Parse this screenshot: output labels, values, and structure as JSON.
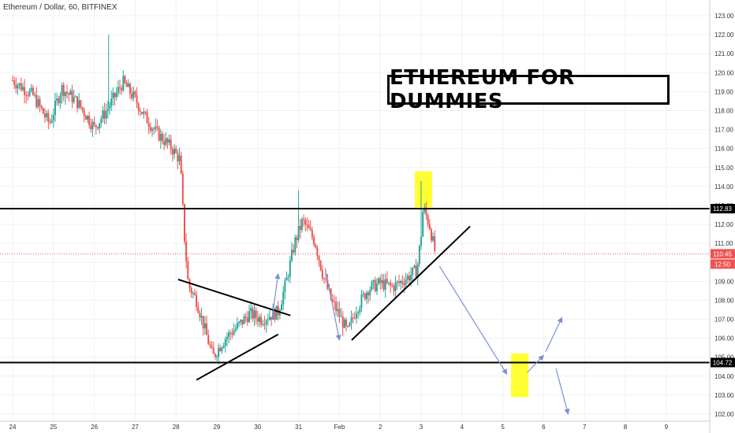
{
  "chart_data": {
    "type": "candlestick",
    "title": "Ethereum / Dollar, 60, BITFINEX",
    "ylim": [
      101.9,
      123.5
    ],
    "y_ticks": [
      102,
      103,
      104,
      105,
      106,
      107,
      108,
      109,
      110,
      111,
      112,
      113,
      114,
      115,
      116,
      117,
      118,
      119,
      120,
      121,
      122,
      123
    ],
    "y_tick_labels": [
      "102.00",
      "103.00",
      "104.00",
      "105.00",
      "106.00",
      "107.00",
      "108.00",
      "109.00",
      "110.00",
      "111.00",
      "112.00",
      "113.00",
      "114.00",
      "115.00",
      "116.00",
      "117.00",
      "118.00",
      "119.00",
      "120.00",
      "121.00",
      "122.00",
      "123.00"
    ],
    "x_tick_labels": [
      "24",
      "25",
      "26",
      "27",
      "28",
      "29",
      "30",
      "31",
      "Feb",
      "2",
      "3",
      "4",
      "5",
      "6",
      "7",
      "8",
      "9"
    ],
    "grid": true,
    "price_line": {
      "value": 110.45,
      "label": "110.45",
      "countdown": "12:50",
      "color": "#ef5350"
    },
    "up_color": "#26a69a",
    "down_color": "#ef5350",
    "horizontal_levels": [
      {
        "value": 112.83,
        "label": "112.83"
      },
      {
        "value": 104.72,
        "label": "104.72"
      }
    ],
    "annotation": "ETHEREUM FOR DUMMIES",
    "highlight_color": "#ffff33",
    "arrow_color": "#7b8fd4"
  }
}
